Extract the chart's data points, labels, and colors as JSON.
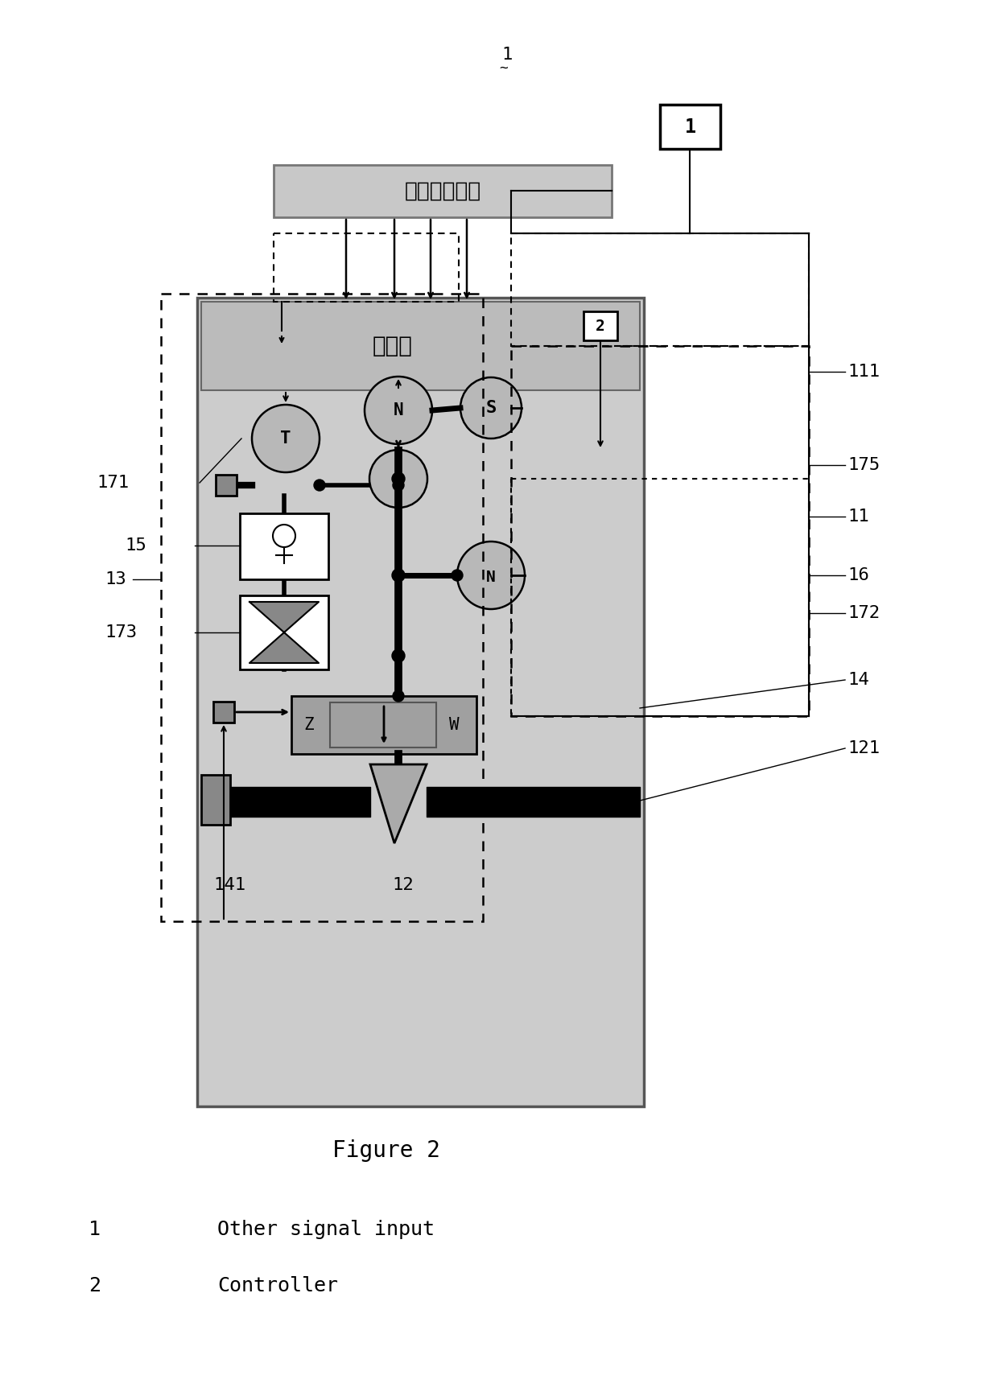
{
  "figure_caption": "Figure 2",
  "legend_items": [
    {
      "number": "1",
      "text": "Other signal input"
    },
    {
      "number": "2",
      "text": "Controller"
    }
  ],
  "box1_label": "1",
  "box2_label": "2",
  "chinese_text_top": "其他信号输入",
  "chinese_text_controller": "控制器",
  "label_13": "13",
  "label_15": "15",
  "label_171": "171",
  "label_173": "173",
  "label_11": "11",
  "label_111": "111",
  "label_12": "12",
  "label_121": "121",
  "label_14": "14",
  "label_141": "141",
  "label_16": "16",
  "label_172": "172",
  "label_175": "175"
}
